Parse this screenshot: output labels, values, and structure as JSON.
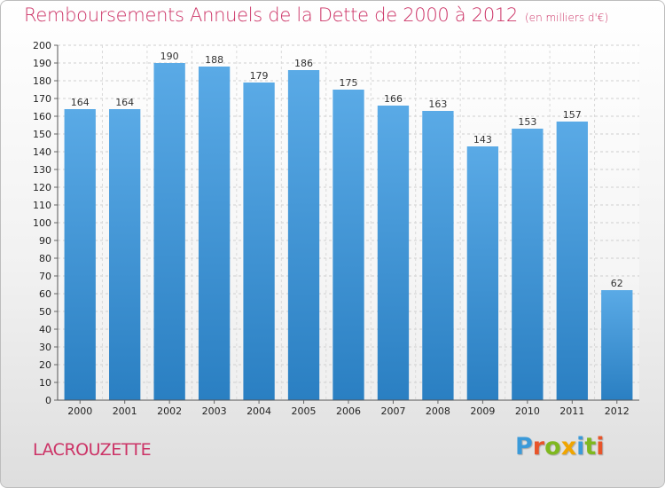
{
  "title": "Remboursements Annuels de la Dette de 2000 à 2012",
  "subtitle": "(en milliers d'€)",
  "city": "LACROUZETTE",
  "logo": {
    "letters": [
      {
        "ch": "P",
        "color": "#3b9ad9"
      },
      {
        "ch": "r",
        "color": "#e8542a"
      },
      {
        "ch": "o",
        "color": "#7fb81f"
      },
      {
        "ch": "x",
        "color": "#f0a500"
      },
      {
        "ch": "i",
        "color": "#3b9ad9"
      },
      {
        "ch": "t",
        "color": "#7fb81f"
      },
      {
        "ch": "i",
        "color": "#e8542a"
      }
    ]
  },
  "colors": {
    "bar_top": "#5aaae6",
    "bar_bottom": "#2a7fc2",
    "title": "#cc3366"
  },
  "chart_data": {
    "type": "bar",
    "categories": [
      "2000",
      "2001",
      "2002",
      "2003",
      "2004",
      "2005",
      "2006",
      "2007",
      "2008",
      "2009",
      "2010",
      "2011",
      "2012"
    ],
    "values": [
      164,
      164,
      190,
      188,
      179,
      186,
      175,
      166,
      163,
      143,
      153,
      157,
      62
    ],
    "title": "Remboursements Annuels de la Dette de 2000 à 2012",
    "xlabel": "",
    "ylabel": "",
    "ylim": [
      0,
      200
    ],
    "ytick_step": 10,
    "grid": true,
    "data_labels": true
  }
}
